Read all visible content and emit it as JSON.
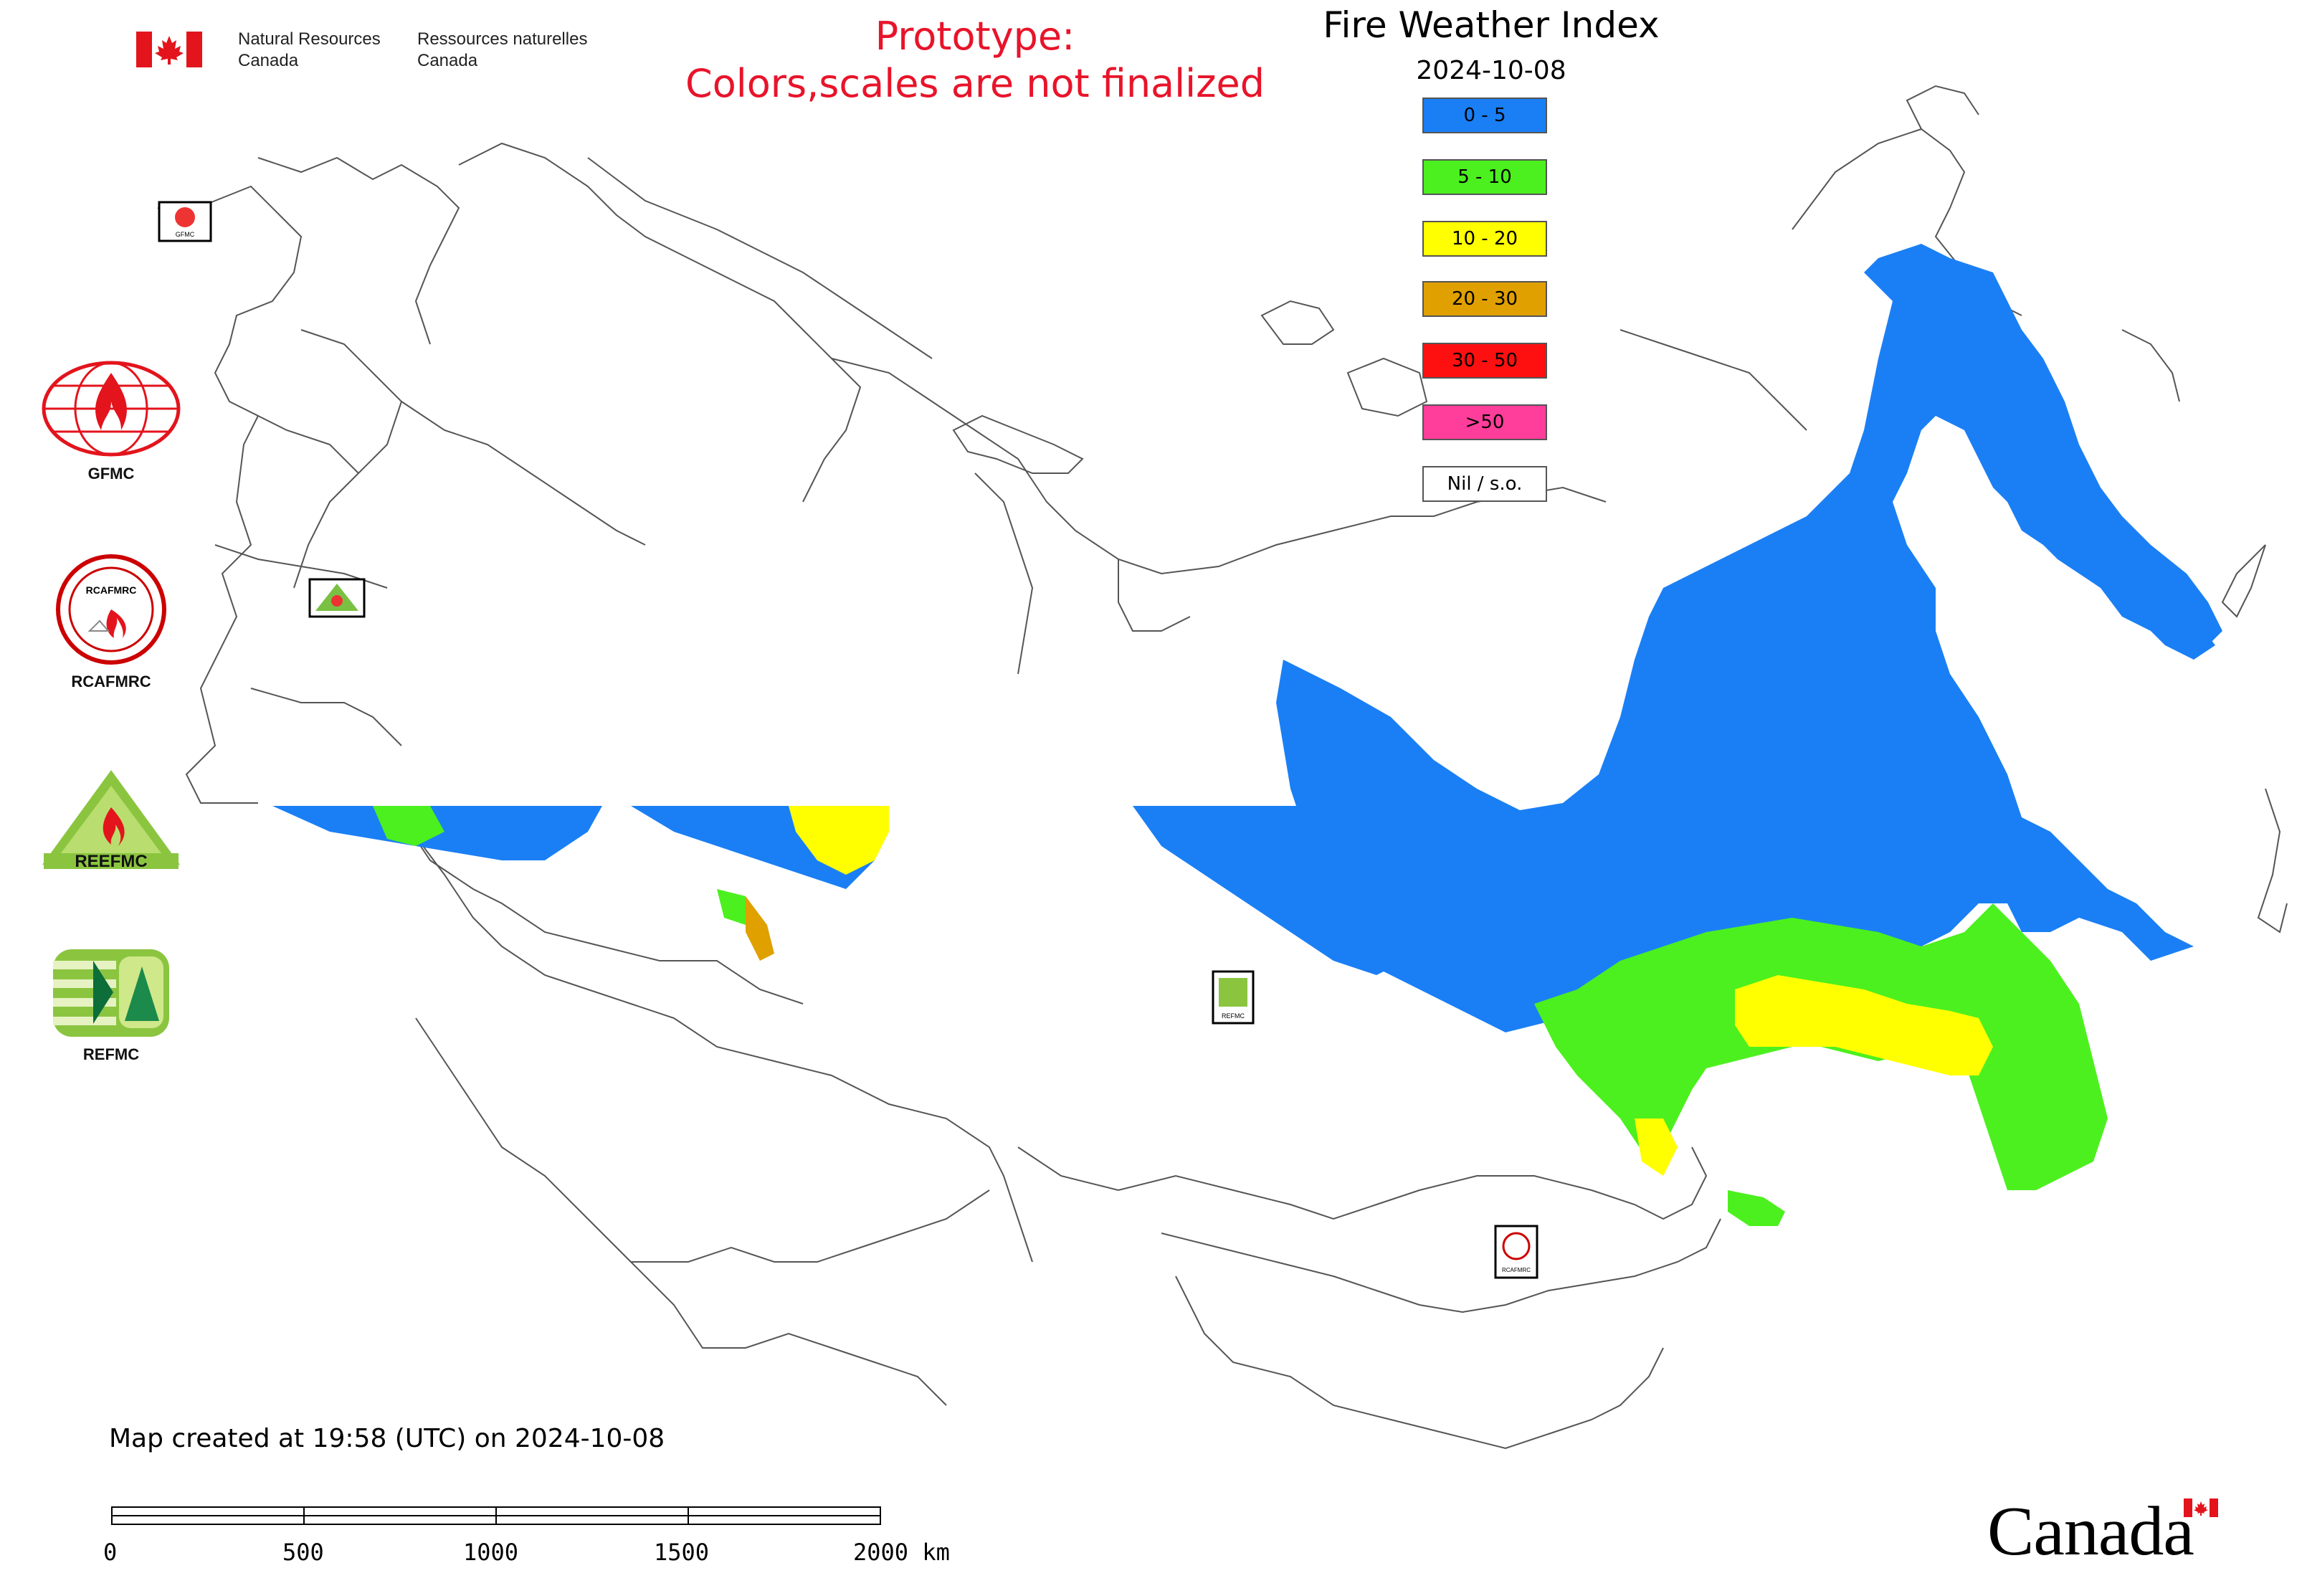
{
  "header": {
    "agency_en_line1": "Natural Resources",
    "agency_en_line2": "Canada",
    "agency_fr_line1": "Ressources naturelles",
    "agency_fr_line2": "Canada",
    "prototype_line1": "Prototype:",
    "prototype_line2": "Colors,scales are not finalized"
  },
  "map": {
    "title": "Fire Weather Index",
    "date": "2024-10-08",
    "created_note": "Map created at 19:58 (UTC) on 2024-10-08"
  },
  "legend": [
    {
      "label": "0 - 5",
      "color": "#1a7ff5"
    },
    {
      "label": "5 - 10",
      "color": "#4cf01e"
    },
    {
      "label": "10 - 20",
      "color": "#ffff00"
    },
    {
      "label": "20 - 30",
      "color": "#e0a000"
    },
    {
      "label": "30 - 50",
      "color": "#ff1010"
    },
    {
      "label": ">50",
      "color": "#ff3d9a"
    },
    {
      "label": "Nil / s.o.",
      "color": "#ffffff"
    }
  ],
  "side_logos": [
    {
      "label": "GFMC",
      "icon": "gfmc-logo"
    },
    {
      "label": "RCAFMRC",
      "icon": "rcafmrc-logo"
    },
    {
      "label": "",
      "icon": "reefmc-logo",
      "wordmark": "REEFMC"
    },
    {
      "label": "REFMC",
      "icon": "refmc-logo"
    }
  ],
  "scale": {
    "ticks": [
      "0",
      "500",
      "1000",
      "1500",
      "2000 km"
    ]
  },
  "footer": {
    "wordmark": "Canada"
  },
  "colors": {
    "prototype_text": "#e8142a",
    "border_line": "#555555",
    "ocean": "#ffffff"
  }
}
